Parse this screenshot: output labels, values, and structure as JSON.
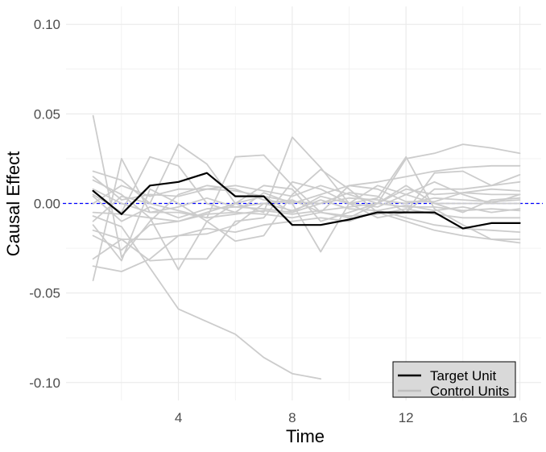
{
  "chart_data": {
    "type": "line",
    "xlabel": "Time",
    "ylabel": "Causal Effect",
    "xlim": [
      0.05,
      16.75
    ],
    "ylim": [
      -0.11,
      0.11
    ],
    "x_ticks": [
      4,
      8,
      12,
      16
    ],
    "x_tick_labels": [
      "4",
      "8",
      "12",
      "16"
    ],
    "y_ticks": [
      0.1,
      0.05,
      0.0,
      -0.05,
      -0.1
    ],
    "y_tick_labels": [
      "0.10",
      "0.05",
      "0.00",
      "-0.05",
      "-0.10"
    ],
    "grid": true,
    "reference_line": {
      "y": 0,
      "style": "dashed",
      "color": "#0000ff"
    },
    "legend": {
      "position": "bottom-right",
      "entries": [
        {
          "label": "Target Unit",
          "color": "#000000"
        },
        {
          "label": "Control Units",
          "color": "#bebebe"
        }
      ]
    },
    "colors": {
      "target": "#000000",
      "control": "#cccccc",
      "reference": "#0000ff"
    },
    "series": [
      {
        "name": "Target Unit",
        "role": "target",
        "x": [
          1,
          2,
          3,
          4,
          5,
          6,
          7,
          8,
          9,
          10,
          11,
          12,
          13,
          14,
          15,
          16
        ],
        "y": [
          0.007,
          -0.006,
          0.01,
          0.012,
          0.017,
          0.004,
          0.004,
          -0.012,
          -0.012,
          -0.009,
          -0.005,
          -0.005,
          -0.005,
          -0.014,
          -0.011,
          -0.011
        ]
      },
      {
        "role": "control",
        "x": [
          1,
          2,
          3,
          4,
          5,
          6,
          7,
          8,
          9
        ],
        "y": [
          -0.007,
          -0.013,
          -0.036,
          -0.059,
          -0.066,
          -0.073,
          -0.086,
          -0.095,
          -0.098
        ]
      },
      {
        "role": "control",
        "x": [
          1,
          2,
          3,
          4,
          5,
          6,
          7,
          8,
          9,
          10,
          11,
          12,
          13,
          14,
          15,
          16
        ],
        "y": [
          0.049,
          -0.03,
          -0.01,
          0.005,
          0.01,
          0.008,
          0.002,
          0.0,
          0.005,
          0.01,
          0.012,
          0.015,
          0.018,
          0.02,
          0.021,
          0.021
        ]
      },
      {
        "role": "control",
        "x": [
          1,
          2,
          3,
          4,
          5,
          6,
          7,
          8,
          9,
          10,
          11,
          12,
          13,
          14,
          15,
          16
        ],
        "y": [
          -0.043,
          0.025,
          -0.005,
          -0.005,
          -0.008,
          0.026,
          0.027,
          0.01,
          -0.005,
          -0.008,
          0.0,
          0.025,
          0.028,
          0.033,
          0.031,
          0.028
        ]
      },
      {
        "role": "control",
        "x": [
          1,
          2,
          3,
          4,
          5,
          6,
          7,
          8,
          9,
          10,
          11,
          12,
          13,
          14,
          15,
          16
        ],
        "y": [
          0.018,
          0.013,
          0.0,
          0.033,
          0.022,
          0.0,
          -0.005,
          0.037,
          0.02,
          0.0,
          0.003,
          0.026,
          -0.003,
          -0.012,
          -0.02,
          -0.022
        ]
      },
      {
        "role": "control",
        "x": [
          1,
          2,
          3,
          4,
          5,
          6,
          7,
          8,
          9,
          10,
          11,
          12,
          13,
          14,
          15,
          16
        ],
        "y": [
          0.005,
          -0.005,
          0.026,
          0.021,
          0.0,
          -0.005,
          0.006,
          0.0,
          -0.027,
          0.0,
          0.01,
          0.005,
          0.012,
          0.005,
          0.0,
          0.005
        ]
      },
      {
        "role": "control",
        "x": [
          1,
          2,
          3,
          4,
          5,
          6,
          7,
          8,
          9,
          10,
          11,
          12,
          13,
          14,
          15,
          16
        ],
        "y": [
          -0.012,
          -0.032,
          0.008,
          0.0,
          -0.01,
          -0.021,
          -0.018,
          0.005,
          0.019,
          0.008,
          -0.005,
          -0.01,
          -0.015,
          -0.018,
          -0.02,
          -0.02
        ]
      },
      {
        "role": "control",
        "x": [
          1,
          2,
          3,
          4,
          5,
          6,
          7,
          8,
          9,
          10,
          11,
          12,
          13,
          14,
          15,
          16
        ],
        "y": [
          -0.031,
          -0.02,
          -0.032,
          -0.031,
          -0.031,
          -0.01,
          -0.008,
          0.012,
          0.008,
          0.0,
          -0.008,
          -0.005,
          0.017,
          0.018,
          0.01,
          0.016
        ]
      },
      {
        "role": "control",
        "x": [
          1,
          2,
          3,
          4,
          5,
          6,
          7,
          8,
          9,
          10,
          11,
          12,
          13,
          14,
          15,
          16
        ],
        "y": [
          -0.035,
          -0.038,
          -0.031,
          -0.018,
          -0.017,
          -0.012,
          0.0,
          0.002,
          -0.005,
          0.01,
          0.008,
          0.001,
          0.001,
          0.006,
          0.005,
          0.005
        ]
      },
      {
        "role": "control",
        "x": [
          1,
          2,
          3,
          4,
          5,
          6,
          7,
          8,
          9,
          10,
          11,
          12,
          13,
          14,
          15,
          16
        ],
        "y": [
          0.013,
          0.005,
          -0.008,
          -0.037,
          -0.01,
          0.0,
          0.01,
          0.008,
          -0.01,
          -0.005,
          0.0,
          0.01,
          0.0,
          -0.005,
          0.002,
          0.003
        ]
      },
      {
        "role": "control",
        "x": [
          1,
          2,
          3,
          4,
          5,
          6,
          7,
          8,
          9,
          10,
          11,
          12,
          13,
          14,
          15,
          16
        ],
        "y": [
          0.0,
          0.01,
          0.004,
          0.008,
          0.008,
          0.007,
          0.004,
          -0.005,
          0.004,
          0.0,
          -0.002,
          0.005,
          0.0,
          0.0,
          0.0,
          0.0
        ]
      },
      {
        "role": "control",
        "x": [
          1,
          2,
          3,
          4,
          5,
          6,
          7,
          8,
          9,
          10,
          11,
          12,
          13,
          14,
          15,
          16
        ],
        "y": [
          -0.005,
          -0.006,
          -0.008,
          -0.01,
          -0.006,
          -0.005,
          -0.006,
          -0.008,
          -0.005,
          -0.007,
          -0.006,
          -0.003,
          -0.006,
          -0.008,
          -0.008,
          -0.008
        ]
      },
      {
        "role": "control",
        "x": [
          1,
          2,
          3,
          4,
          5,
          6,
          7,
          8,
          9,
          10,
          11,
          12,
          13,
          14,
          15,
          16
        ],
        "y": [
          -0.018,
          -0.026,
          -0.012,
          -0.01,
          -0.005,
          0.0,
          0.004,
          0.001,
          0.0,
          0.006,
          0.004,
          -0.005,
          0.008,
          0.008,
          0.01,
          0.012
        ]
      },
      {
        "role": "control",
        "x": [
          1,
          2,
          3,
          4,
          5,
          6,
          7,
          8,
          9,
          10,
          11,
          12,
          13,
          14,
          15,
          16
        ],
        "y": [
          0.008,
          0.0,
          -0.005,
          -0.002,
          0.003,
          -0.002,
          -0.003,
          -0.005,
          0.0,
          0.003,
          0.002,
          0.0,
          0.003,
          0.002,
          0.001,
          0.002
        ]
      },
      {
        "role": "control",
        "x": [
          1,
          2,
          3,
          4,
          5,
          6,
          7,
          8,
          9,
          10,
          11,
          12,
          13,
          14,
          15,
          16
        ],
        "y": [
          -0.015,
          -0.02,
          -0.02,
          -0.018,
          -0.014,
          -0.016,
          -0.012,
          -0.01,
          -0.008,
          -0.01,
          -0.004,
          -0.008,
          -0.012,
          -0.014,
          -0.015,
          -0.016
        ]
      },
      {
        "role": "control",
        "x": [
          1,
          2,
          3,
          4,
          5,
          6,
          7,
          8,
          9,
          10,
          11,
          12,
          13,
          14,
          15,
          16
        ],
        "y": [
          0.015,
          0.002,
          0.005,
          0.004,
          0.008,
          0.01,
          0.007,
          0.004,
          0.01,
          0.005,
          0.0,
          0.008,
          0.005,
          0.006,
          0.008,
          0.007
        ]
      },
      {
        "role": "control",
        "x": [
          1,
          2,
          3,
          4,
          5,
          6,
          7,
          8,
          9,
          10,
          11,
          12,
          13,
          14,
          15,
          16
        ],
        "y": [
          -0.01,
          0.004,
          0.0,
          -0.004,
          -0.008,
          -0.006,
          -0.004,
          -0.006,
          -0.004,
          -0.002,
          0.0,
          -0.002,
          -0.002,
          -0.004,
          -0.003,
          -0.004
        ]
      },
      {
        "role": "control",
        "x": [
          1,
          2,
          3,
          4,
          5,
          6,
          7,
          8,
          9,
          10,
          11,
          12,
          13,
          14,
          15,
          16
        ],
        "y": [
          0.004,
          -0.01,
          -0.002,
          -0.008,
          -0.003,
          -0.002,
          0.0,
          -0.004,
          0.002,
          -0.003,
          -0.004,
          -0.001,
          -0.004,
          -0.002,
          -0.005,
          -0.003
        ]
      }
    ]
  }
}
